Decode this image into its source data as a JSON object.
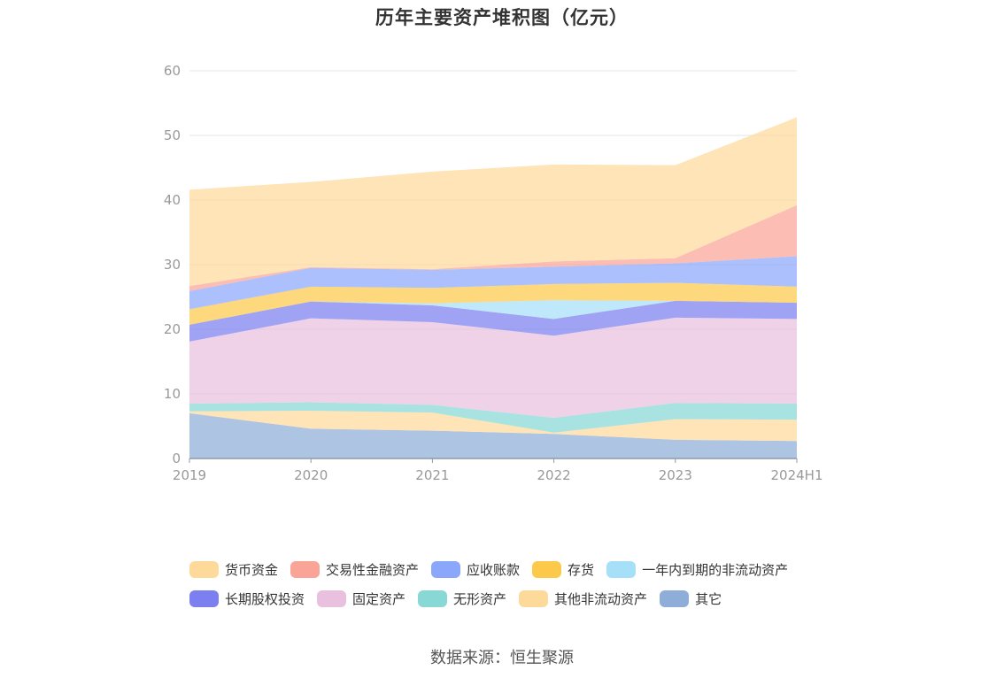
{
  "chart_data": {
    "type": "area",
    "stacked": true,
    "title": "历年主要资产堆积图（亿元）",
    "categories": [
      "2019",
      "2020",
      "2021",
      "2022",
      "2023",
      "2024H1"
    ],
    "ylim": [
      0,
      60
    ],
    "yticks": [
      "0",
      "10",
      "20",
      "30",
      "40",
      "50",
      "60"
    ],
    "grid": true,
    "legend_position": "bottom",
    "series": [
      {
        "name": "其它",
        "color": "#8eadd8",
        "values": [
          7.0,
          4.6,
          4.3,
          3.8,
          2.9,
          2.7
        ]
      },
      {
        "name": "其他非流动资产",
        "color": "#fdd99a",
        "values": [
          0.3,
          2.8,
          2.8,
          0.2,
          3.2,
          3.3
        ]
      },
      {
        "name": "无形资产",
        "color": "#88d8d6",
        "values": [
          1.2,
          1.3,
          1.2,
          2.3,
          2.5,
          2.5
        ]
      },
      {
        "name": "固定资产",
        "color": "#e9c0de",
        "values": [
          9.6,
          13.0,
          12.8,
          12.7,
          13.2,
          13.1
        ]
      },
      {
        "name": "长期股权投资",
        "color": "#7b7ff0",
        "values": [
          2.6,
          2.6,
          2.6,
          2.6,
          2.6,
          2.5
        ]
      },
      {
        "name": "一年内到期的非流动资产",
        "color": "#a6dff8",
        "values": [
          0,
          0,
          0.3,
          2.9,
          0,
          0
        ]
      },
      {
        "name": "存货",
        "color": "#fcc94a",
        "values": [
          2.4,
          2.3,
          2.4,
          2.5,
          2.8,
          2.5
        ]
      },
      {
        "name": "应收账款",
        "color": "#8ba7fb",
        "values": [
          2.8,
          2.9,
          2.8,
          2.7,
          3.0,
          4.7
        ]
      },
      {
        "name": "交易性金融资产",
        "color": "#f9a497",
        "values": [
          0.8,
          0.1,
          0.1,
          0.8,
          0.8,
          7.9
        ]
      },
      {
        "name": "货币资金",
        "color": "#fdd99a",
        "values": [
          14.9,
          13.2,
          15.1,
          15.0,
          14.4,
          13.6
        ]
      }
    ]
  },
  "legend": {
    "row1": [
      "货币资金",
      "交易性金融资产",
      "应收账款",
      "存货",
      "一年内到期的非流动资产"
    ],
    "row2": [
      "长期股权投资",
      "固定资产",
      "无形资产",
      "其他非流动资产",
      "其它"
    ]
  },
  "source_text": "数据来源：恒生聚源"
}
